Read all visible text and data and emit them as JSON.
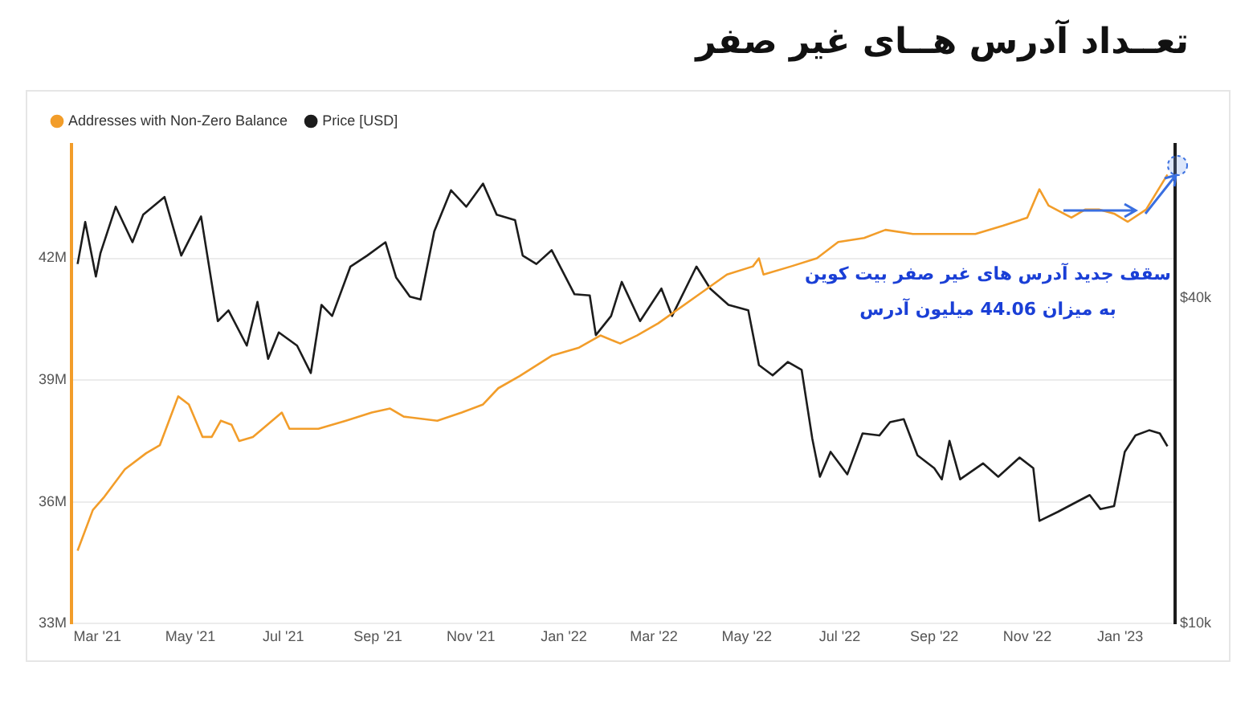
{
  "chart_data": {
    "type": "line",
    "title": "تعــداد آدرس هــای غیر صفر",
    "annotations": [
      "سقف جدید آدرس های غیر صفر بیت کوین به میزان 44.06 میلیون آدرس"
    ],
    "series": [
      {
        "name": "Addresses with Non-Zero Balance",
        "color": "#f29d2a",
        "axis": "y",
        "x": [
          "2021-02-16",
          "2021-02-26",
          "2021-03-05",
          "2021-03-19",
          "2021-04-02",
          "2021-04-11",
          "2021-04-23",
          "2021-04-30",
          "2021-05-09",
          "2021-05-15",
          "2021-05-21",
          "2021-05-28",
          "2021-06-02",
          "2021-06-11",
          "2021-06-30",
          "2021-07-05",
          "2021-07-24",
          "2021-08-11",
          "2021-08-28",
          "2021-09-09",
          "2021-09-18",
          "2021-10-10",
          "2021-10-26",
          "2021-11-09",
          "2021-11-19",
          "2021-12-03",
          "2021-12-24",
          "2022-01-11",
          "2022-01-25",
          "2022-02-07",
          "2022-02-18",
          "2022-03-04",
          "2022-04-03",
          "2022-04-18",
          "2022-05-05",
          "2022-05-09",
          "2022-05-12",
          "2022-05-30",
          "2022-06-16",
          "2022-06-30",
          "2022-07-17",
          "2022-07-31",
          "2022-08-18",
          "2022-09-11",
          "2022-09-28",
          "2022-10-16",
          "2022-11-01",
          "2022-11-09",
          "2022-11-15",
          "2022-11-30",
          "2022-12-09",
          "2022-12-18",
          "2022-12-28",
          "2023-01-06",
          "2023-01-18",
          "2023-02-01"
        ],
        "values": [
          34.8,
          35.8,
          36.1,
          36.8,
          37.2,
          37.4,
          38.6,
          38.4,
          37.6,
          37.6,
          38.0,
          37.9,
          37.5,
          37.6,
          38.2,
          37.8,
          37.8,
          38.0,
          38.2,
          38.3,
          38.1,
          38.0,
          38.2,
          38.4,
          38.8,
          39.1,
          39.6,
          39.8,
          40.1,
          39.9,
          40.1,
          40.4,
          41.2,
          41.6,
          41.8,
          42.0,
          41.6,
          41.8,
          42.0,
          42.4,
          42.5,
          42.7,
          42.6,
          42.6,
          42.6,
          42.8,
          43.0,
          43.7,
          43.3,
          43.0,
          43.2,
          43.2,
          43.1,
          42.9,
          43.2,
          44.06
        ]
      },
      {
        "name": "Price [USD]",
        "color": "#1c1c1c",
        "axis": "y2",
        "x": [
          "2021-02-16",
          "2021-02-21",
          "2021-02-28",
          "2021-03-03",
          "2021-03-13",
          "2021-03-24",
          "2021-03-31",
          "2021-04-14",
          "2021-04-25",
          "2021-05-08",
          "2021-05-19",
          "2021-05-26",
          "2021-06-07",
          "2021-06-14",
          "2021-06-21",
          "2021-06-28",
          "2021-07-10",
          "2021-07-19",
          "2021-07-26",
          "2021-08-02",
          "2021-08-14",
          "2021-08-25",
          "2021-09-06",
          "2021-09-13",
          "2021-09-22",
          "2021-09-29",
          "2021-10-08",
          "2021-10-19",
          "2021-10-29",
          "2021-11-09",
          "2021-11-18",
          "2021-11-30",
          "2021-12-05",
          "2021-12-14",
          "2021-12-24",
          "2022-01-08",
          "2022-01-18",
          "2022-01-22",
          "2022-02-01",
          "2022-02-08",
          "2022-02-20",
          "2022-03-06",
          "2022-03-13",
          "2022-03-29",
          "2022-04-07",
          "2022-04-19",
          "2022-05-02",
          "2022-05-09",
          "2022-05-18",
          "2022-05-28",
          "2022-06-06",
          "2022-06-13",
          "2022-06-18",
          "2022-06-25",
          "2022-07-06",
          "2022-07-16",
          "2022-07-27",
          "2022-08-03",
          "2022-08-12",
          "2022-08-21",
          "2022-09-01",
          "2022-09-06",
          "2022-09-11",
          "2022-09-18",
          "2022-10-03",
          "2022-10-13",
          "2022-10-27",
          "2022-11-05",
          "2022-11-09",
          "2022-11-21",
          "2022-12-12",
          "2022-12-19",
          "2022-12-28",
          "2023-01-04",
          "2023-01-11",
          "2023-01-20",
          "2023-01-27",
          "2023-02-01"
        ],
        "values": [
          46300,
          55400,
          43900,
          48500,
          59100,
          50800,
          57100,
          61600,
          48000,
          56700,
          36300,
          38000,
          32700,
          39400,
          30900,
          34600,
          32700,
          29100,
          38900,
          37100,
          45800,
          48000,
          50800,
          43700,
          40300,
          39800,
          53200,
          63400,
          59100,
          65200,
          57100,
          55800,
          48000,
          46300,
          49100,
          40700,
          40500,
          34200,
          37100,
          42900,
          36300,
          41700,
          37100,
          45800,
          41700,
          38900,
          38000,
          30100,
          28800,
          30500,
          29500,
          22000,
          18700,
          20800,
          18900,
          22500,
          22300,
          23600,
          23900,
          20500,
          19400,
          18500,
          21800,
          18500,
          19800,
          18700,
          20300,
          19400,
          15500,
          16100,
          17300,
          16300,
          16500,
          20800,
          22300,
          22800,
          22500,
          21300
        ]
      }
    ],
    "xlim": [
      "2021-02-12",
      "2023-02-06"
    ],
    "xticks": [
      {
        "value": "2021-03-01",
        "label": "Mar '21"
      },
      {
        "value": "2021-05-01",
        "label": "May '21"
      },
      {
        "value": "2021-07-01",
        "label": "Jul '21"
      },
      {
        "value": "2021-09-01",
        "label": "Sep '21"
      },
      {
        "value": "2021-11-01",
        "label": "Nov '21"
      },
      {
        "value": "2022-01-01",
        "label": "Jan '22"
      },
      {
        "value": "2022-03-01",
        "label": "Mar '22"
      },
      {
        "value": "2022-05-01",
        "label": "May '22"
      },
      {
        "value": "2022-07-01",
        "label": "Jul '22"
      },
      {
        "value": "2022-09-01",
        "label": "Sep '22"
      },
      {
        "value": "2022-11-01",
        "label": "Nov '22"
      },
      {
        "value": "2023-01-01",
        "label": "Jan '23"
      }
    ],
    "ylim": [
      33,
      44.8
    ],
    "yticks": [
      {
        "value": 33,
        "label": "33M"
      },
      {
        "value": 36,
        "label": "36M"
      },
      {
        "value": 39,
        "label": "39M"
      },
      {
        "value": 42,
        "label": "42M"
      }
    ],
    "y2lim": [
      10000,
      77000
    ],
    "y2ticks": [
      {
        "value": 10000,
        "label": "$10k"
      },
      {
        "value": 40000,
        "label": "$40k"
      }
    ],
    "log": "y2",
    "grid": "y",
    "legend": "top left",
    "marker": "none",
    "line_style": "solid"
  }
}
